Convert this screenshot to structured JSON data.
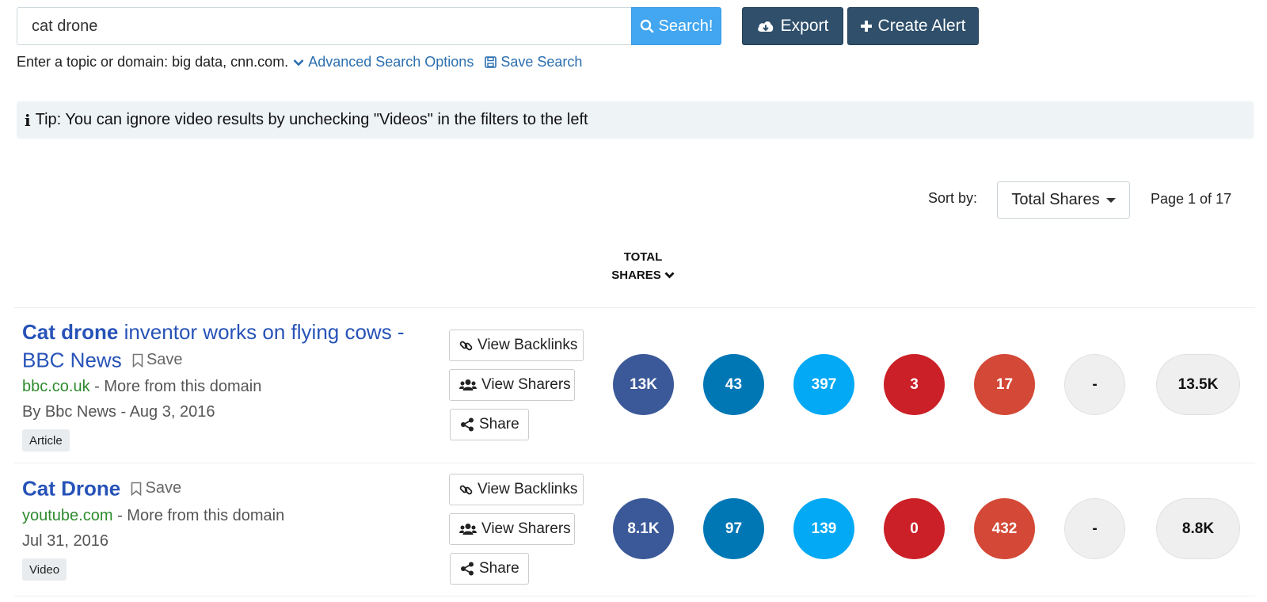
{
  "search": {
    "value": "cat drone",
    "button_label": "Search!"
  },
  "toolbar": {
    "export_label": "Export",
    "alert_label": "Create Alert"
  },
  "hint": {
    "text": "Enter a topic or domain: big data, cnn.com.",
    "advanced_label": "Advanced Search Options",
    "save_search_label": "Save Search"
  },
  "tip": {
    "text": "Tip: You can ignore video results by unchecking \"Videos\" in the filters to the left"
  },
  "sort": {
    "label": "Sort by:",
    "selected": "Total Shares",
    "page_info": "Page 1 of 17"
  },
  "column_header": {
    "line1": "TOTAL",
    "line2": "SHARES"
  },
  "colors": {
    "facebook": "#3b5998",
    "linkedin": "#0077b5",
    "twitter": "#03a9f4",
    "pinterest": "#cb2027",
    "reddit": "#d34836",
    "empty": "#efefef"
  },
  "actions": {
    "backlinks_label": "View Backlinks",
    "sharers_label": "View Sharers",
    "share_label": "Share",
    "save_label": "Save"
  },
  "results": [
    {
      "title_bold": "Cat drone",
      "title_rest": " inventor works on flying cows - BBC News",
      "domain": "bbc.co.uk",
      "more": " - More from this domain",
      "meta": "By Bbc News - Aug 3, 2016",
      "tag": "Article",
      "shares": [
        "13K",
        "43",
        "397",
        "3",
        "17",
        "-"
      ],
      "total": "13.5K"
    },
    {
      "title_bold": "Cat Drone",
      "title_rest": "",
      "domain": "youtube.com",
      "more": " - More from this domain",
      "meta": "Jul 31, 2016",
      "tag": "Video",
      "shares": [
        "8.1K",
        "97",
        "139",
        "0",
        "432",
        "-"
      ],
      "total": "8.8K"
    }
  ]
}
